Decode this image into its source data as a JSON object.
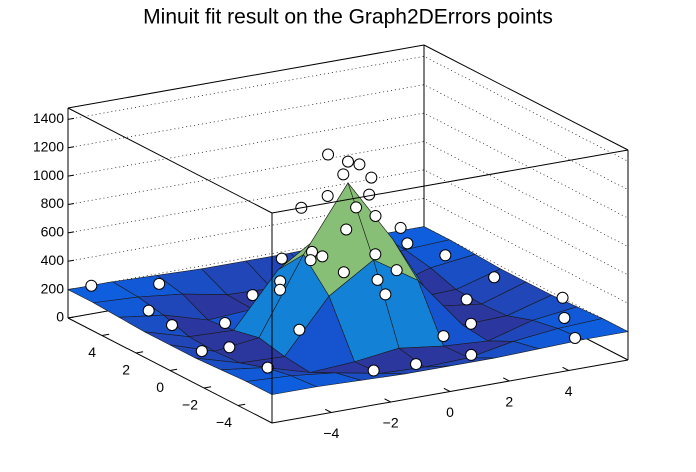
{
  "chart_data": {
    "type": "surface",
    "title": "Minuit fit result on the Graph2DErrors points",
    "x": [
      -6,
      -4.5,
      -3,
      -1.5,
      0,
      1.5,
      3,
      4.5,
      6
    ],
    "y": [
      -6,
      -4.5,
      -3,
      -1.5,
      0,
      1.5,
      3,
      4.5,
      6
    ],
    "z": [
      [
        200,
        200,
        190,
        180,
        180,
        180,
        190,
        200,
        200
      ],
      [
        200,
        185,
        150,
        90,
        80,
        90,
        150,
        185,
        200
      ],
      [
        190,
        150,
        60,
        80,
        120,
        80,
        60,
        150,
        190
      ],
      [
        180,
        90,
        80,
        450,
        650,
        450,
        80,
        90,
        180
      ],
      [
        180,
        80,
        120,
        650,
        1100,
        650,
        120,
        80,
        180
      ],
      [
        180,
        90,
        80,
        450,
        650,
        450,
        80,
        90,
        180
      ],
      [
        190,
        150,
        60,
        80,
        120,
        80,
        60,
        150,
        190
      ],
      [
        200,
        185,
        150,
        90,
        80,
        90,
        150,
        185,
        200
      ],
      [
        200,
        200,
        190,
        180,
        180,
        180,
        190,
        200,
        200
      ]
    ],
    "points": {
      "x": [
        0,
        -0.5,
        0.5,
        -1,
        1,
        -0.3,
        1.2,
        -1.5,
        0.8,
        -1.2,
        2,
        -2,
        0,
        0,
        2.5,
        -2.5,
        3,
        -3,
        1.5,
        -1.5,
        4,
        -4,
        0,
        0,
        5,
        -5,
        5,
        -5,
        3.5,
        -3.5,
        4.5,
        -2,
        2,
        5.5,
        -5.5,
        5.8,
        -5.5,
        1,
        -4.5,
        3,
        0.3,
        -0.8,
        0.5,
        1.5,
        -1
      ],
      "y": [
        0,
        0.3,
        -0.5,
        1,
        0.5,
        -1,
        -1,
        -0.5,
        1.5,
        1.8,
        0,
        0.5,
        2.2,
        -2.2,
        1.5,
        -1.5,
        -2,
        2,
        -3,
        3,
        0,
        0,
        4,
        -4,
        3,
        3,
        -4,
        -4,
        4.5,
        5,
        -5.5,
        -5,
        5,
        1,
        -1,
        -2.5,
        5.5,
        -5.5,
        2.5,
        3.5,
        0.8,
        -0.2,
        0.2,
        1,
        -1.5
      ],
      "z": [
        1250,
        1300,
        1150,
        900,
        950,
        1000,
        800,
        700,
        650,
        500,
        600,
        450,
        420,
        450,
        300,
        250,
        120,
        100,
        150,
        180,
        130,
        90,
        100,
        70,
        220,
        200,
        210,
        230,
        190,
        210,
        180,
        160,
        200,
        170,
        180,
        230,
        240,
        190,
        110,
        90,
        1100,
        1050,
        1200,
        750,
        600
      ]
    },
    "xlim": [
      -6,
      6
    ],
    "ylim": [
      -6,
      6
    ],
    "zlim": [
      0,
      1480
    ],
    "xticks": [
      {
        "value": -4,
        "label": "−4"
      },
      {
        "value": -2,
        "label": "−2"
      },
      0,
      2,
      4
    ],
    "yticks": [
      {
        "value": -4,
        "label": "−4"
      },
      {
        "value": -2,
        "label": "−2"
      },
      0,
      2,
      4
    ],
    "zticks": [
      0,
      200,
      400,
      600,
      800,
      1000,
      1200,
      1400
    ],
    "palette": [
      "#352a87",
      "#0f5cdd",
      "#1481d6",
      "#06a4ca",
      "#2eb7a4",
      "#87bf77",
      "#d1bb59",
      "#fec832",
      "#f9fb0e"
    ],
    "point_color": "#ffffff",
    "grid": true
  }
}
